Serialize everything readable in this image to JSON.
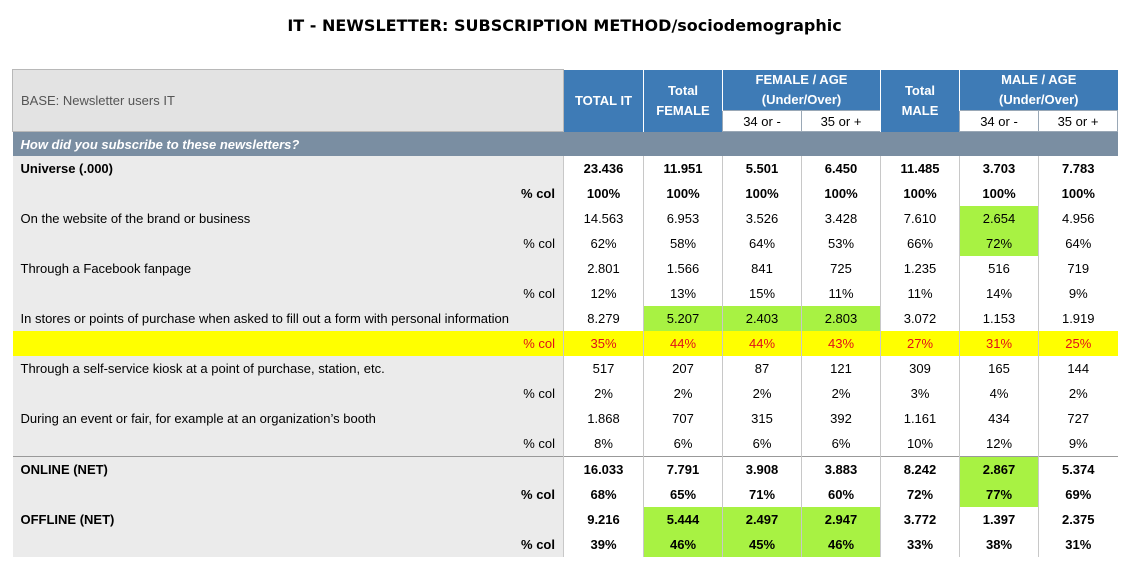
{
  "title": "IT - NEWSLETTER: SUBSCRIPTION METHOD/sociodemographic",
  "header": {
    "base": "BASE: Newsletter users IT",
    "total_it": "TOTAL IT",
    "total_female_1": "Total",
    "total_female_2": "FEMALE",
    "female_age_1": "FEMALE / AGE",
    "female_age_2": "(Under/Over)",
    "total_male_1": "Total",
    "total_male_2": "MALE",
    "male_age_1": "MALE / AGE",
    "male_age_2": "(Under/Over)",
    "sub_under": "34 or -",
    "sub_over": "35 or +"
  },
  "question": "How did you subscribe to these newsletters?",
  "pct_label": "% col",
  "rows": [
    {
      "label": "Universe (.000)",
      "bold": true,
      "values": [
        "23.436",
        "11.951",
        "5.501",
        "6.450",
        "11.485",
        "3.703",
        "7.783"
      ],
      "pct": [
        "100%",
        "100%",
        "100%",
        "100%",
        "100%",
        "100%",
        "100%"
      ]
    },
    {
      "label": "On the website of the brand or business",
      "values": [
        "14.563",
        "6.953",
        "3.526",
        "3.428",
        "7.610",
        "2.654",
        "4.956"
      ],
      "pct": [
        "62%",
        "58%",
        "64%",
        "53%",
        "66%",
        "72%",
        "64%"
      ]
    },
    {
      "label": "Through a Facebook fanpage",
      "values": [
        "2.801",
        "1.566",
        "841",
        "725",
        "1.235",
        "516",
        "719"
      ],
      "pct": [
        "12%",
        "13%",
        "15%",
        "11%",
        "11%",
        "14%",
        "9%"
      ]
    },
    {
      "label": "In stores or points of purchase when asked to fill out a form with personal information",
      "values": [
        "8.279",
        "5.207",
        "2.403",
        "2.803",
        "3.072",
        "1.153",
        "1.919"
      ],
      "pct": [
        "35%",
        "44%",
        "44%",
        "43%",
        "27%",
        "31%",
        "25%"
      ]
    },
    {
      "label": "Through a self-service kiosk at a point of purchase, station, etc.",
      "values": [
        "517",
        "207",
        "87",
        "121",
        "309",
        "165",
        "144"
      ],
      "pct": [
        "2%",
        "2%",
        "2%",
        "2%",
        "3%",
        "4%",
        "2%"
      ]
    },
    {
      "label": "During an event or fair, for example at an organization’s booth",
      "values": [
        "1.868",
        "707",
        "315",
        "392",
        "1.161",
        "434",
        "727"
      ],
      "pct": [
        "8%",
        "6%",
        "6%",
        "6%",
        "10%",
        "12%",
        "9%"
      ]
    },
    {
      "label": "ONLINE (NET)",
      "bold": true,
      "values": [
        "16.033",
        "7.791",
        "3.908",
        "3.883",
        "8.242",
        "2.867",
        "5.374"
      ],
      "pct": [
        "68%",
        "65%",
        "71%",
        "60%",
        "72%",
        "77%",
        "69%"
      ]
    },
    {
      "label": "OFFLINE (NET)",
      "bold": true,
      "values": [
        "9.216",
        "5.444",
        "2.497",
        "2.947",
        "3.772",
        "1.397",
        "2.375"
      ],
      "pct": [
        "39%",
        "46%",
        "45%",
        "46%",
        "33%",
        "38%",
        "31%"
      ]
    }
  ],
  "colors": {
    "green_highlight": "#a8f243",
    "yellow_highlight": "#ffff00",
    "header_blue": "#3e7bb6",
    "question_bar": "#7a8ea2"
  }
}
